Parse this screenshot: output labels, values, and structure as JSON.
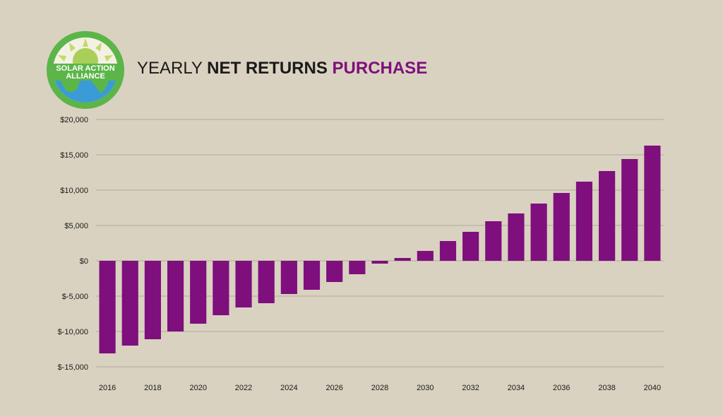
{
  "colors": {
    "bar": "#7e0f7d",
    "grid": "#b3ab9a",
    "background": "#d9d2c0",
    "logo_ring": "#5cb548",
    "logo_earth": "#3a9bd6"
  },
  "logo": {
    "line1": "SOLAR ACTION",
    "line2": "ALLIANCE"
  },
  "title": {
    "part1": "YEARLY ",
    "part2": "NET RETURNS ",
    "part3": "PURCHASE"
  },
  "chart_data": {
    "type": "bar",
    "title": "YEARLY NET RETURNS PURCHASE",
    "categories": [
      "2016",
      "2017",
      "2018",
      "2019",
      "2020",
      "2021",
      "2022",
      "2023",
      "2024",
      "2025",
      "2026",
      "2027",
      "2028",
      "2029",
      "2030",
      "2031",
      "2032",
      "2033",
      "2034",
      "2035",
      "2036",
      "2037",
      "2038",
      "2039",
      "2040"
    ],
    "values": [
      -13100,
      -12000,
      -11100,
      -10000,
      -8900,
      -7700,
      -6600,
      -6000,
      -4700,
      -4100,
      -3000,
      -1900,
      -400,
      400,
      1400,
      2800,
      4100,
      5600,
      6700,
      8100,
      9600,
      11200,
      12700,
      14400,
      16300
    ],
    "x_tick_labels": [
      "2016",
      "2018",
      "2020",
      "2022",
      "2024",
      "2026",
      "2028",
      "2030",
      "2032",
      "2034",
      "2036",
      "2038",
      "2040"
    ],
    "y_ticks": [
      20000,
      15000,
      10000,
      5000,
      0,
      -5000,
      -10000,
      -15000
    ],
    "y_tick_labels": [
      "$20,000",
      "$15,000",
      "$10,000",
      "$5,000",
      "$0",
      "$-5,000",
      "$-10,000",
      "$-15,000"
    ],
    "ylim": [
      -15000,
      20000
    ],
    "xlabel": "",
    "ylabel": "",
    "grid": true,
    "legend": "none"
  }
}
